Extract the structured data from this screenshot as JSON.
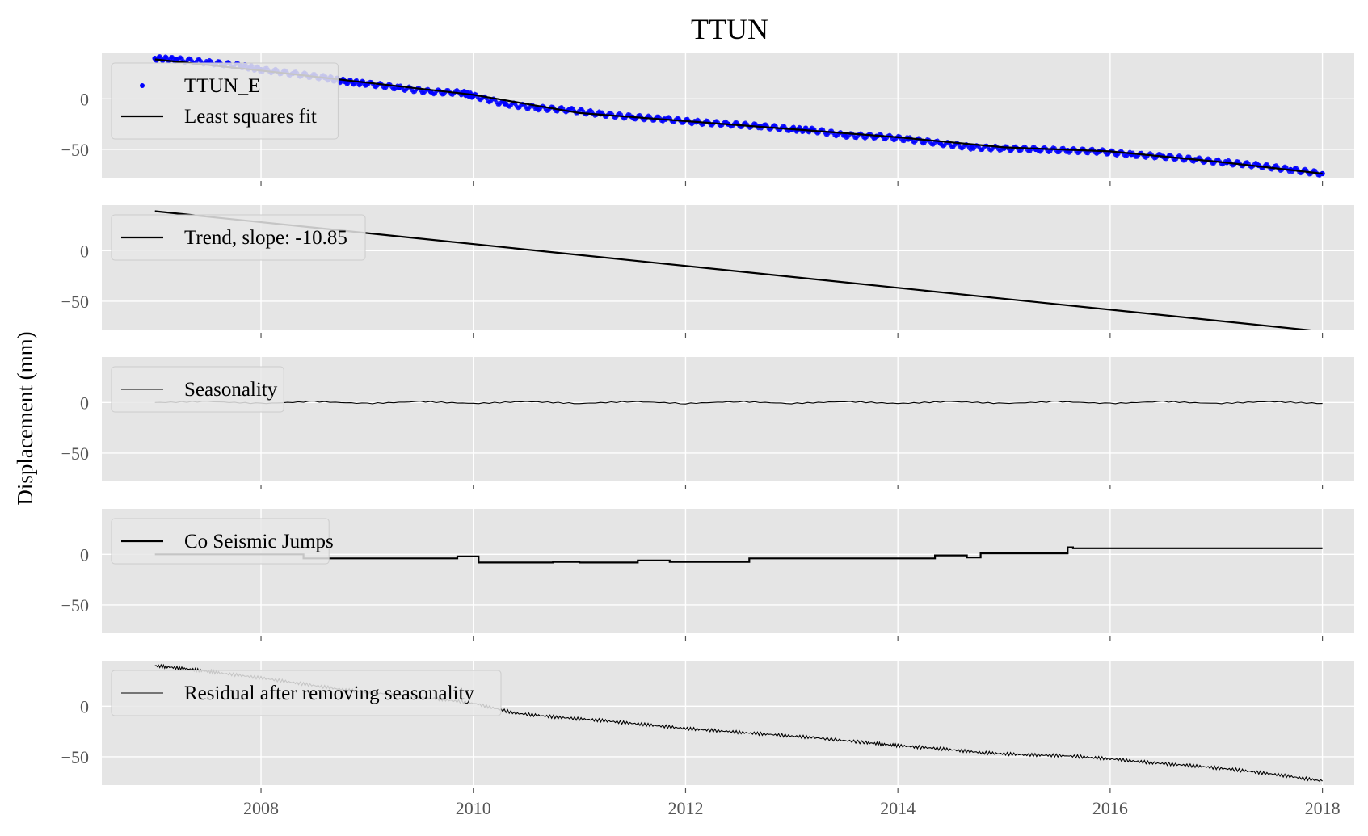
{
  "figure": {
    "title": "TTUN",
    "ylabel": "Displacement (mm)",
    "background": "#ffffff",
    "panel_bg": "#e5e5e5",
    "grid_color": "#ffffff",
    "tick_label_color": "#555555",
    "point_color": "#0000ff",
    "line_color": "#000000"
  },
  "chart_data": [
    {
      "type": "scatter",
      "panel": 1,
      "xlim": [
        2006.5,
        2018.3
      ],
      "ylim": [
        -78,
        45
      ],
      "xticks": [
        "2008",
        "2010",
        "2012",
        "2014",
        "2016",
        "2018"
      ],
      "xtick_values": [
        2008,
        2010,
        2012,
        2014,
        2016,
        2018
      ],
      "yticks": [
        "0",
        "−50"
      ],
      "ytick_values": [
        0,
        -50
      ],
      "show_xticklabels": false,
      "grid": true,
      "legend_position": "top-left",
      "series": [
        {
          "name": "TTUN_E",
          "kind": "points",
          "color": "#0000ff",
          "x": [
            2007.0,
            2007.2,
            2007.5,
            2007.8,
            2008.0,
            2008.3,
            2008.6,
            2008.8,
            2009.0,
            2009.3,
            2009.6,
            2009.9,
            2010.0,
            2010.3,
            2010.6,
            2010.9,
            2011.2,
            2011.5,
            2011.8,
            2012.1,
            2012.4,
            2012.7,
            2013.0,
            2013.2,
            2013.5,
            2013.8,
            2014.1,
            2014.4,
            2014.7,
            2015.0,
            2015.3,
            2015.6,
            2015.9,
            2016.2,
            2016.5,
            2016.8,
            2017.1,
            2017.4,
            2017.7,
            2018.0
          ],
          "y": [
            40,
            39,
            36,
            33,
            29,
            25,
            21,
            17,
            15,
            11,
            7,
            6,
            3,
            -5,
            -9,
            -11,
            -15,
            -18,
            -20,
            -23,
            -25,
            -27,
            -30,
            -31,
            -36,
            -37,
            -40,
            -44,
            -48,
            -49,
            -50,
            -51,
            -52,
            -55,
            -57,
            -60,
            -63,
            -66,
            -70,
            -74
          ]
        },
        {
          "name": "Least squares fit",
          "kind": "line",
          "color": "#000000",
          "x": [
            2007.0,
            2008.0,
            2009.0,
            2010.0,
            2011.0,
            2012.0,
            2013.0,
            2014.0,
            2015.0,
            2016.0,
            2017.0,
            2018.0
          ],
          "y": [
            39,
            28,
            16,
            4,
            -14,
            -22,
            -30,
            -38,
            -48,
            -52,
            -62,
            -74
          ]
        }
      ]
    },
    {
      "type": "line",
      "panel": 2,
      "xlim": [
        2006.5,
        2018.3
      ],
      "ylim": [
        -78,
        45
      ],
      "xticks": [
        "2008",
        "2010",
        "2012",
        "2014",
        "2016",
        "2018"
      ],
      "xtick_values": [
        2008,
        2010,
        2012,
        2014,
        2016,
        2018
      ],
      "yticks": [
        "0",
        "−50"
      ],
      "ytick_values": [
        0,
        -50
      ],
      "show_xticklabels": false,
      "grid": true,
      "legend_position": "top-left",
      "series": [
        {
          "name": "Trend, slope: -10.85",
          "color": "#000000",
          "x": [
            2007.0,
            2018.0
          ],
          "y": [
            39,
            -80
          ]
        }
      ]
    },
    {
      "type": "line",
      "panel": 3,
      "xlim": [
        2006.5,
        2018.3
      ],
      "ylim": [
        -78,
        45
      ],
      "xticks": [
        "2008",
        "2010",
        "2012",
        "2014",
        "2016",
        "2018"
      ],
      "xtick_values": [
        2008,
        2010,
        2012,
        2014,
        2016,
        2018
      ],
      "yticks": [
        "0",
        "−50"
      ],
      "ytick_values": [
        0,
        -50
      ],
      "show_xticklabels": false,
      "grid": true,
      "legend_position": "top-left",
      "series": [
        {
          "name": "Seasonality",
          "color": "#000000",
          "x": [
            2007.0,
            2007.5,
            2008.0,
            2008.5,
            2009.0,
            2009.5,
            2010.0,
            2010.5,
            2011.0,
            2011.5,
            2012.0,
            2012.5,
            2013.0,
            2013.5,
            2014.0,
            2014.5,
            2015.0,
            2015.5,
            2016.0,
            2016.5,
            2017.0,
            2017.5,
            2018.0
          ],
          "y": [
            0,
            1,
            -1,
            1,
            -1,
            1,
            -1,
            1,
            -1,
            1,
            -1,
            1,
            -1,
            1,
            -1,
            1,
            -1,
            1,
            -1,
            1,
            -1,
            1,
            -1
          ]
        }
      ]
    },
    {
      "type": "line",
      "panel": 4,
      "xlim": [
        2006.5,
        2018.3
      ],
      "ylim": [
        -78,
        45
      ],
      "xticks": [
        "2008",
        "2010",
        "2012",
        "2014",
        "2016",
        "2018"
      ],
      "xtick_values": [
        2008,
        2010,
        2012,
        2014,
        2016,
        2018
      ],
      "yticks": [
        "0",
        "−50"
      ],
      "ytick_values": [
        0,
        -50
      ],
      "show_xticklabels": false,
      "grid": true,
      "legend_position": "top-left",
      "series": [
        {
          "name": "Co Seismic Jumps",
          "color": "#000000",
          "step": true,
          "x": [
            2007.0,
            2008.4,
            2009.85,
            2010.05,
            2010.75,
            2011.0,
            2011.55,
            2011.85,
            2012.6,
            2014.35,
            2014.65,
            2014.78,
            2015.6,
            2015.65,
            2018.0
          ],
          "y": [
            0,
            -4,
            -2,
            -8,
            -7.5,
            -8,
            -6,
            -7.5,
            -4,
            -1,
            -3,
            1,
            7,
            6,
            6
          ]
        }
      ]
    },
    {
      "type": "line",
      "panel": 5,
      "xlim": [
        2006.5,
        2018.3
      ],
      "ylim": [
        -78,
        45
      ],
      "xticks": [
        "2008",
        "2010",
        "2012",
        "2014",
        "2016",
        "2018"
      ],
      "xtick_values": [
        2008,
        2010,
        2012,
        2014,
        2016,
        2018
      ],
      "yticks": [
        "0",
        "−50"
      ],
      "ytick_values": [
        0,
        -50
      ],
      "show_xticklabels": true,
      "grid": true,
      "legend_position": "top-left",
      "series": [
        {
          "name": "Residual after removing seasonality",
          "color": "#000000",
          "x": [
            2007.0,
            2007.3,
            2007.6,
            2008.0,
            2008.4,
            2008.8,
            2009.2,
            2009.6,
            2010.0,
            2010.4,
            2010.8,
            2011.2,
            2011.6,
            2012.0,
            2012.4,
            2012.8,
            2013.2,
            2013.7,
            2014.0,
            2014.4,
            2014.8,
            2015.2,
            2015.6,
            2016.0,
            2016.4,
            2016.8,
            2017.2,
            2017.6,
            2018.0
          ],
          "y": [
            40,
            37,
            33,
            28,
            22,
            16,
            12,
            8,
            3,
            -7,
            -11,
            -14,
            -18,
            -22,
            -25,
            -28,
            -31,
            -36,
            -39,
            -42,
            -46,
            -48,
            -49,
            -52,
            -56,
            -59,
            -63,
            -68,
            -74
          ]
        }
      ]
    }
  ]
}
